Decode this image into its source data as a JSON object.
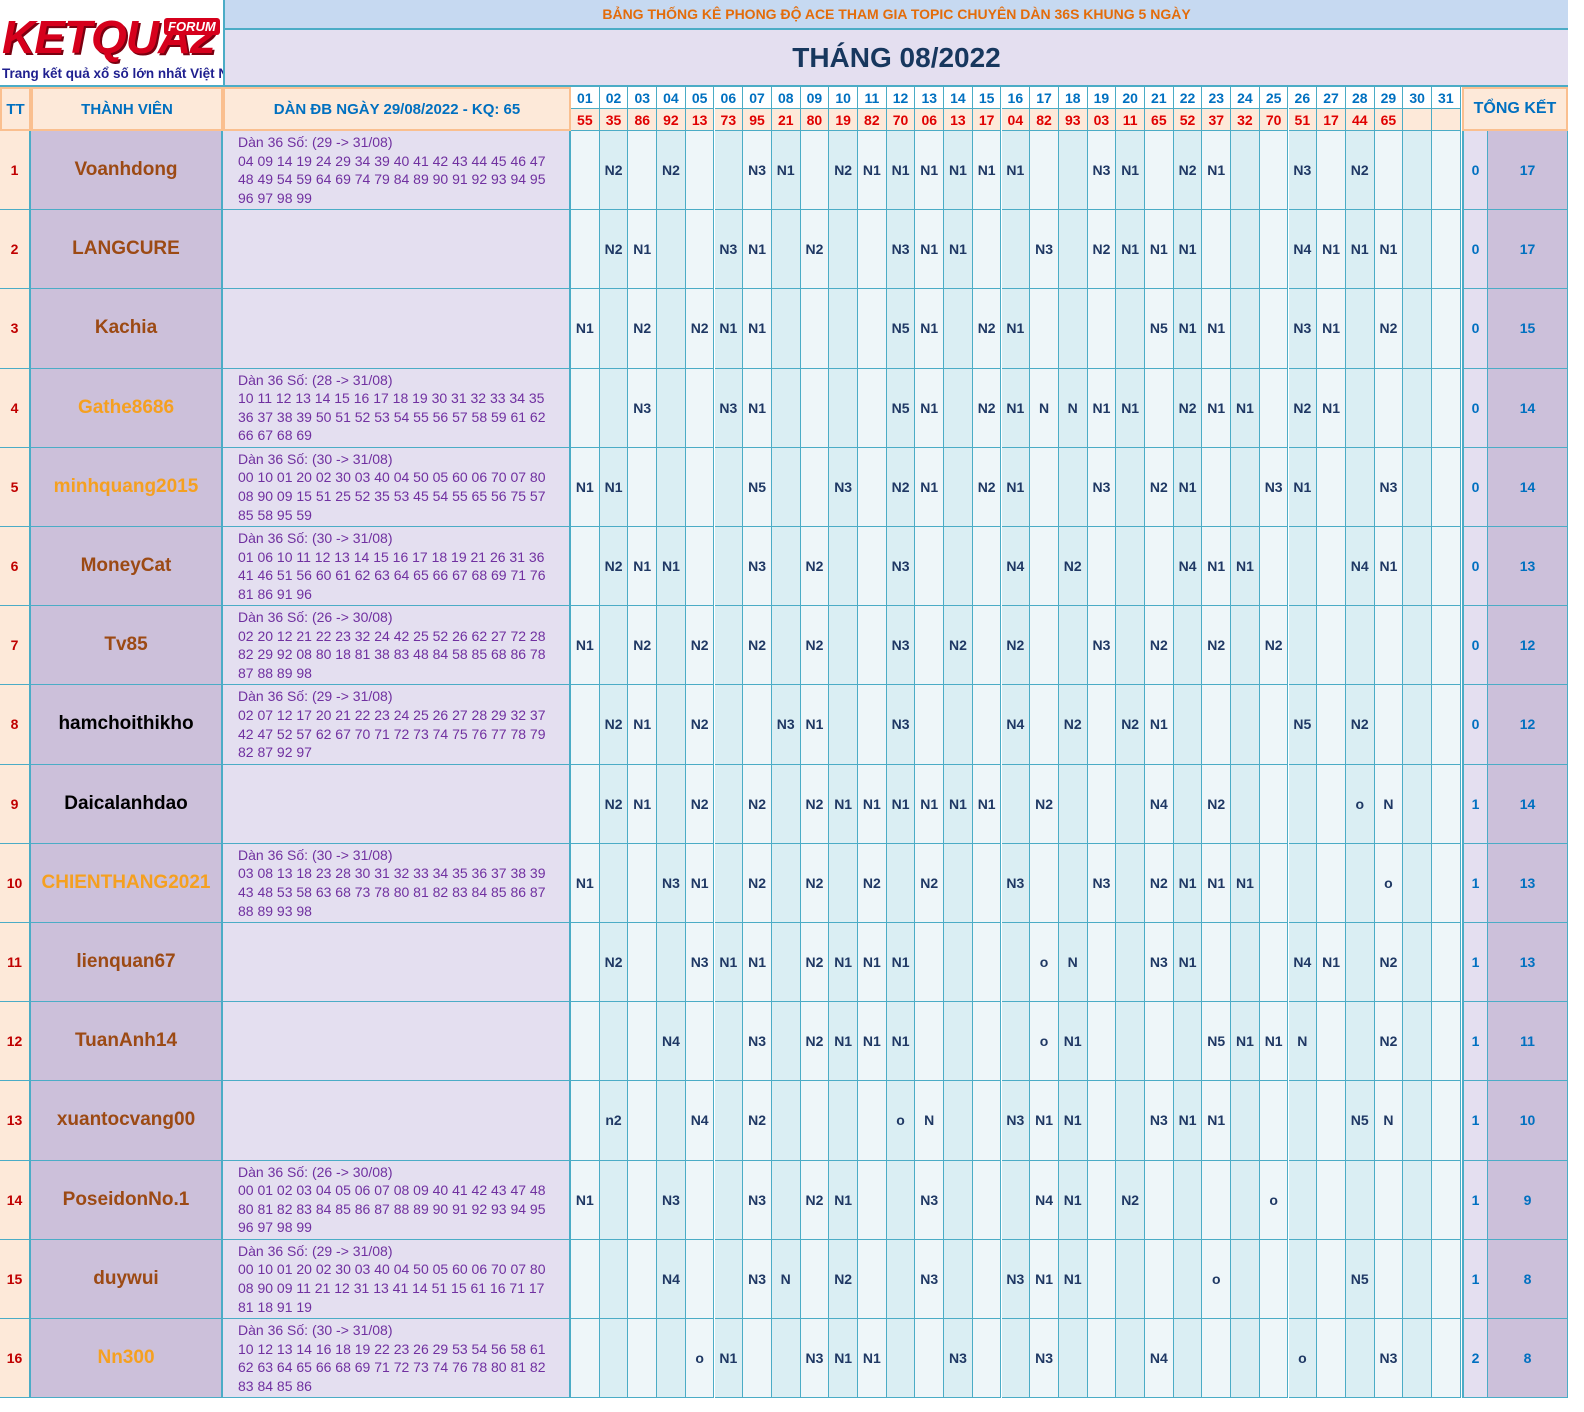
{
  "logo": {
    "text": "KETQUA2",
    "badge": "FORUM",
    "tagline": "Trang kết quả xổ số lớn nhất Việt Nam"
  },
  "header": {
    "title": "BẢNG THỐNG KÊ PHONG ĐỘ ACE THAM GIA TOPIC CHUYÊN DÀN 36S KHUNG 5 NGÀY",
    "month": "THÁNG 08/2022",
    "tt": "TT",
    "member": "THÀNH VIÊN",
    "dan": "DÀN ĐB NGÀY 29/08/2022 - KQ: 65",
    "total": "TỔNG KẾT",
    "days": [
      "01",
      "02",
      "03",
      "04",
      "05",
      "06",
      "07",
      "08",
      "09",
      "10",
      "11",
      "12",
      "13",
      "14",
      "15",
      "16",
      "17",
      "18",
      "19",
      "20",
      "21",
      "22",
      "23",
      "24",
      "25",
      "26",
      "27",
      "28",
      "29",
      "30",
      "31"
    ],
    "results": [
      "55",
      "35",
      "86",
      "92",
      "13",
      "73",
      "95",
      "21",
      "80",
      "19",
      "82",
      "70",
      "06",
      "13",
      "17",
      "04",
      "82",
      "93",
      "03",
      "11",
      "65",
      "52",
      "37",
      "32",
      "70",
      "51",
      "17",
      "44",
      "65",
      null,
      null
    ]
  },
  "rows": [
    {
      "tt": 1,
      "name": "Voanhdong",
      "color": "#9c4a14",
      "dan": [
        "Dàn 36 Số: (29 -> 31/08)",
        "04 09 14 19 24 29 34 39 40 41 42 43 44 45 46 47",
        "48 49 54 59 64 69 74 79 84 89 90 91 92 93 94 95",
        "96 97 98 99"
      ],
      "days": [
        null,
        "N2",
        null,
        "N2",
        null,
        null,
        "N3",
        "N1",
        null,
        "N2",
        "N1",
        "N1",
        "N1",
        "N1",
        "N1",
        "N1",
        null,
        null,
        "N3",
        "N1",
        null,
        "N2",
        "N1",
        null,
        null,
        "N3",
        null,
        "N2",
        null,
        null,
        null
      ],
      "total": [
        0,
        17
      ]
    },
    {
      "tt": 2,
      "name": "LANGCURE",
      "color": "#9c4a14",
      "dan": null,
      "days": [
        null,
        "N2",
        "N1",
        null,
        null,
        "N3",
        "N1",
        null,
        "N2",
        null,
        null,
        "N3",
        "N1",
        "N1",
        null,
        null,
        "N3",
        null,
        "N2",
        "N1",
        "N1",
        "N1",
        null,
        null,
        null,
        "N4",
        "N1",
        "N1",
        "N1",
        null,
        null
      ],
      "total": [
        0,
        17
      ]
    },
    {
      "tt": 3,
      "name": "Kachia",
      "color": "#9c4a14",
      "dan": null,
      "days": [
        "N1",
        null,
        "N2",
        null,
        "N2",
        "N1",
        "N1",
        null,
        null,
        null,
        null,
        "N5",
        "N1",
        null,
        "N2",
        "N1",
        null,
        null,
        null,
        null,
        "N5",
        "N1",
        "N1",
        null,
        null,
        "N3",
        "N1",
        null,
        "N2",
        null,
        null
      ],
      "total": [
        0,
        15
      ]
    },
    {
      "tt": 4,
      "name": "Gathe8686",
      "color": "#f5a020",
      "dan": [
        "Dàn 36 Số: (28 -> 31/08)",
        "10 11 12 13 14 15 16 17 18 19 30 31 32 33 34 35",
        "36 37 38 39 50 51 52 53 54 55 56 57 58 59 61 62",
        "66 67 68 69"
      ],
      "days": [
        null,
        null,
        "N3",
        null,
        null,
        "N3",
        "N1",
        null,
        null,
        null,
        null,
        "N5",
        "N1",
        null,
        "N2",
        "N1",
        "N",
        "N",
        "N1",
        "N1",
        null,
        "N2",
        "N1",
        "N1",
        null,
        "N2",
        "N1",
        null,
        null,
        null,
        null
      ],
      "total": [
        0,
        14
      ]
    },
    {
      "tt": 5,
      "name": "minhquang2015",
      "color": "#f5a020",
      "dan": [
        "Dàn 36 Số: (30 -> 31/08)",
        "00 10 01 20 02 30 03 40 04 50 05 60 06 70 07 80",
        "08 90 09 15 51 25 52 35 53 45 54 55 65 56 75 57",
        "85 58 95 59"
      ],
      "days": [
        "N1",
        "N1",
        null,
        null,
        null,
        null,
        "N5",
        null,
        null,
        "N3",
        null,
        "N2",
        "N1",
        null,
        "N2",
        "N1",
        null,
        null,
        "N3",
        null,
        "N2",
        "N1",
        null,
        null,
        "N3",
        "N1",
        null,
        null,
        "N3",
        null,
        null
      ],
      "total": [
        0,
        14
      ]
    },
    {
      "tt": 6,
      "name": "MoneyCat",
      "color": "#9c4a14",
      "dan": [
        "Dàn 36 Số: (30 -> 31/08)",
        "01 06 10 11 12 13 14 15 16 17 18 19 21 26 31 36",
        "41 46 51 56 60 61 62 63 64 65 66 67 68 69 71 76",
        "81 86 91 96"
      ],
      "days": [
        null,
        "N2",
        "N1",
        "N1",
        null,
        null,
        "N3",
        null,
        "N2",
        null,
        null,
        "N3",
        null,
        null,
        null,
        "N4",
        null,
        "N2",
        null,
        null,
        null,
        "N4",
        "N1",
        "N1",
        null,
        null,
        null,
        "N4",
        "N1",
        null,
        null
      ],
      "total": [
        0,
        13
      ]
    },
    {
      "tt": 7,
      "name": "Tv85",
      "color": "#9c4a14",
      "dan": [
        "Dàn 36 Số: (26 -> 30/08)",
        "02 20 12 21 22 23 32 24 42 25 52 26 62 27 72 28",
        "82 29 92 08 80 18 81 38 83 48 84 58 85 68 86 78",
        "87 88 89 98"
      ],
      "days": [
        "N1",
        null,
        "N2",
        null,
        "N2",
        null,
        "N2",
        null,
        "N2",
        null,
        null,
        "N3",
        null,
        "N2",
        null,
        "N2",
        null,
        null,
        "N3",
        null,
        "N2",
        null,
        "N2",
        null,
        "N2",
        null,
        null,
        null,
        null,
        null,
        null
      ],
      "total": [
        0,
        12
      ]
    },
    {
      "tt": 8,
      "name": "hamchoithikho",
      "color": "#000000",
      "dan": [
        "Dàn 36 Số: (29 -> 31/08)",
        "02 07 12 17 20 21 22 23 24 25 26 27 28 29 32 37",
        "42 47 52 57 62 67 70 71 72 73 74 75 76 77 78 79",
        "82 87 92 97"
      ],
      "days": [
        null,
        "N2",
        "N1",
        null,
        "N2",
        null,
        null,
        "N3",
        "N1",
        null,
        null,
        "N3",
        null,
        null,
        null,
        "N4",
        null,
        "N2",
        null,
        "N2",
        "N1",
        null,
        null,
        null,
        null,
        "N5",
        null,
        "N2",
        null,
        null,
        null
      ],
      "total": [
        0,
        12
      ]
    },
    {
      "tt": 9,
      "name": "Daicalanhdao",
      "color": "#000000",
      "dan": null,
      "days": [
        null,
        "N2",
        "N1",
        null,
        "N2",
        null,
        "N2",
        null,
        "N2",
        "N1",
        "N1",
        "N1",
        "N1",
        "N1",
        "N1",
        null,
        "N2",
        null,
        null,
        null,
        "N4",
        null,
        "N2",
        null,
        null,
        null,
        null,
        "o",
        "N",
        null,
        null
      ],
      "total": [
        1,
        14
      ]
    },
    {
      "tt": 10,
      "name": "CHIENTHANG2021",
      "color": "#f5a020",
      "dan": [
        "Dàn 36 Số: (30 -> 31/08)",
        "03 08 13 18 23 28 30 31 32 33 34 35 36 37 38 39",
        "43 48 53 58 63 68 73 78 80 81 82 83 84 85 86 87",
        "88 89 93 98"
      ],
      "days": [
        "N1",
        null,
        null,
        "N3",
        "N1",
        null,
        "N2",
        null,
        "N2",
        null,
        "N2",
        null,
        "N2",
        null,
        null,
        "N3",
        null,
        null,
        "N3",
        null,
        "N2",
        "N1",
        "N1",
        "N1",
        null,
        null,
        null,
        null,
        "o",
        null,
        null
      ],
      "total": [
        1,
        13
      ]
    },
    {
      "tt": 11,
      "name": "lienquan67",
      "color": "#9c4a14",
      "dan": null,
      "days": [
        null,
        "N2",
        null,
        null,
        "N3",
        "N1",
        "N1",
        null,
        "N2",
        "N1",
        "N1",
        "N1",
        null,
        null,
        null,
        null,
        "o",
        "N",
        null,
        null,
        "N3",
        "N1",
        null,
        null,
        null,
        "N4",
        "N1",
        null,
        "N2",
        null,
        null
      ],
      "total": [
        1,
        13
      ]
    },
    {
      "tt": 12,
      "name": "TuanAnh14",
      "color": "#9c4a14",
      "dan": null,
      "days": [
        null,
        null,
        null,
        "N4",
        null,
        null,
        "N3",
        null,
        "N2",
        "N1",
        "N1",
        "N1",
        null,
        null,
        null,
        null,
        "o",
        "N1",
        null,
        null,
        null,
        null,
        "N5",
        "N1",
        "N1",
        "N",
        null,
        null,
        "N2",
        null,
        null
      ],
      "total": [
        1,
        11
      ]
    },
    {
      "tt": 13,
      "name": "xuantocvang00",
      "color": "#9c4a14",
      "dan": null,
      "days": [
        null,
        "n2",
        null,
        null,
        "N4",
        null,
        "N2",
        null,
        null,
        null,
        null,
        "o",
        "N",
        null,
        null,
        "N3",
        "N1",
        "N1",
        null,
        null,
        "N3",
        "N1",
        "N1",
        null,
        null,
        null,
        null,
        "N5",
        "N",
        null,
        null
      ],
      "total": [
        1,
        10
      ]
    },
    {
      "tt": 14,
      "name": "PoseidonNo.1",
      "color": "#9c4a14",
      "dan": [
        "Dàn 36 Số: (26 -> 30/08)",
        "00 01 02 03 04 05 06 07 08 09 40 41 42 43 47 48",
        "80 81 82 83 84 85 86 87 88 89 90 91 92 93 94 95",
        "96 97 98 99"
      ],
      "days": [
        "N1",
        null,
        null,
        "N3",
        null,
        null,
        "N3",
        null,
        "N2",
        "N1",
        null,
        null,
        "N3",
        null,
        null,
        null,
        "N4",
        "N1",
        null,
        "N2",
        null,
        null,
        null,
        null,
        "o",
        null,
        null,
        null,
        null,
        null,
        null
      ],
      "total": [
        1,
        9
      ]
    },
    {
      "tt": 15,
      "name": "duywui",
      "color": "#9c4a14",
      "dan": [
        "Dàn 36 Số: (29 -> 31/08)",
        "00 10 01 20 02 30 03 40 04 50 05 60 06 70 07 80",
        "08 90 09 11 21 12 31 13 41 14 51 15 61 16 71 17",
        "81 18 91 19"
      ],
      "days": [
        null,
        null,
        null,
        "N4",
        null,
        null,
        "N3",
        "N",
        null,
        "N2",
        null,
        null,
        "N3",
        null,
        null,
        "N3",
        "N1",
        "N1",
        null,
        null,
        null,
        null,
        "o",
        null,
        null,
        null,
        null,
        "N5",
        null,
        null,
        null
      ],
      "total": [
        1,
        8
      ]
    },
    {
      "tt": 16,
      "name": "Nn300",
      "color": "#f5a020",
      "dan": [
        "Dàn 36 Số: (30 -> 31/08)",
        "10 12 13 14 16 18 19 22 23 26 29 53 54 56 58 61",
        "62 63 64 65 66 68 69 71 72 73 74 76 78 80 81 82",
        "83 84 85 86"
      ],
      "days": [
        null,
        null,
        null,
        null,
        "o",
        "N1",
        null,
        null,
        "N3",
        "N1",
        "N1",
        null,
        null,
        "N3",
        null,
        null,
        "N3",
        null,
        null,
        null,
        "N4",
        null,
        null,
        null,
        null,
        "o",
        null,
        null,
        "N3",
        null,
        null
      ],
      "total": [
        2,
        8
      ]
    }
  ]
}
